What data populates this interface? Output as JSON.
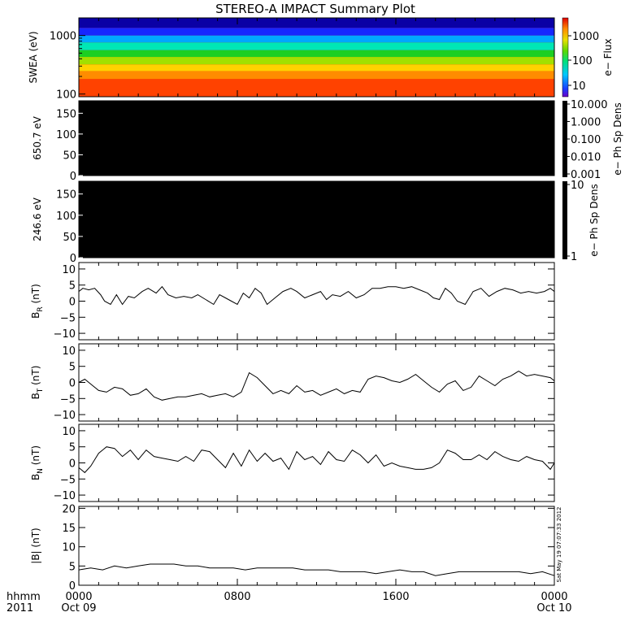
{
  "chart_data": {
    "title": "STEREO-A IMPACT Summary Plot",
    "time_axis": {
      "range_hours": [
        0,
        24
      ],
      "ticks": [
        {
          "at": 0,
          "top": "0000",
          "bottom": "Oct 09"
        },
        {
          "at": 8,
          "top": "0800",
          "bottom": ""
        },
        {
          "at": 16,
          "top": "1600",
          "bottom": ""
        },
        {
          "at": 24,
          "top": "0000",
          "bottom": "Oct 10"
        }
      ],
      "corner_top": "hhmm",
      "corner_bottom": "2011"
    },
    "timestamp": "Sat May 19 07:07:33 2012",
    "panels": [
      {
        "id": "swea",
        "type": "heatmap",
        "ylabel": "SWEA (eV)",
        "ylim": [
          90,
          2000
        ],
        "yscale": "log",
        "yticks": [
          "1000",
          "100"
        ],
        "bands": [
          {
            "energy_max": 1700,
            "color": "#0a00a5"
          },
          {
            "energy_max": 1350,
            "color": "#1626ff"
          },
          {
            "energy_max": 1000,
            "color": "#00a7ff"
          },
          {
            "energy_max": 760,
            "color": "#00e7b5"
          },
          {
            "energy_max": 560,
            "color": "#1ccf22"
          },
          {
            "energy_max": 430,
            "color": "#a2e000"
          },
          {
            "energy_max": 320,
            "color": "#ffd200"
          },
          {
            "energy_max": 245,
            "color": "#ff8c00"
          },
          {
            "energy_max": 180,
            "color": "#ff4200"
          },
          {
            "energy_max": 90,
            "color": "#e10a00"
          }
        ],
        "colorbar": {
          "label": "e− Flux",
          "ticks": [
            "1000",
            "100",
            "10"
          ]
        }
      },
      {
        "id": "pad650",
        "type": "heatmap",
        "ylabel": "650.7 eV",
        "ylim": [
          0,
          180
        ],
        "yticks": [
          "150",
          "100",
          "50",
          "0"
        ],
        "fill": "#000000",
        "colorbar": {
          "label": "e− Ph Sp Dens",
          "ticks": [
            "10.000",
            "1.000",
            "0.100",
            "0.010",
            "0.001"
          ]
        }
      },
      {
        "id": "pad246",
        "type": "heatmap",
        "ylabel": "246.6 eV",
        "ylim": [
          0,
          180
        ],
        "yticks": [
          "150",
          "100",
          "50",
          "0"
        ],
        "fill": "#000000",
        "colorbar": {
          "label": "e− Ph Sp Dens",
          "ticks": [
            "10",
            "1"
          ]
        }
      },
      {
        "id": "br",
        "type": "line",
        "ylabel": "BR (nT)",
        "ylabel_main": "B",
        "ylabel_sub": "R",
        "ylabel_unit": " (nT)",
        "ylim": [
          -12,
          12
        ],
        "yticks": [
          {
            "v": 10,
            "t": "10"
          },
          {
            "v": 5,
            "t": "5"
          },
          {
            "v": 0,
            "t": "0"
          },
          {
            "v": -5,
            "t": "−5"
          },
          {
            "v": -10,
            "t": "−10"
          }
        ],
        "x": [
          0,
          0.2,
          0.5,
          0.8,
          1.1,
          1.3,
          1.6,
          1.9,
          2.2,
          2.5,
          2.8,
          3.2,
          3.5,
          3.9,
          4.2,
          4.5,
          4.9,
          5.3,
          5.7,
          6.0,
          6.4,
          6.8,
          7.1,
          7.4,
          7.7,
          8.0,
          8.3,
          8.6,
          8.9,
          9.2,
          9.5,
          9.9,
          10.3,
          10.7,
          11.0,
          11.4,
          11.8,
          12.2,
          12.5,
          12.8,
          13.2,
          13.6,
          14.0,
          14.4,
          14.8,
          15.2,
          15.6,
          16.0,
          16.4,
          16.8,
          17.2,
          17.6,
          17.9,
          18.2,
          18.5,
          18.8,
          19.1,
          19.5,
          19.9,
          20.3,
          20.7,
          21.1,
          21.5,
          21.9,
          22.3,
          22.7,
          23.1,
          23.5,
          23.8,
          24.0
        ],
        "values": [
          3,
          4,
          3.5,
          4,
          2,
          0,
          -1,
          2,
          -1,
          1.5,
          1,
          3,
          4,
          2.5,
          4.5,
          2,
          1,
          1.5,
          1,
          2,
          0.5,
          -1,
          2,
          1,
          0,
          -1,
          2.5,
          1,
          4,
          2.5,
          -1,
          1,
          3,
          4,
          3,
          1,
          2,
          3,
          0.5,
          2,
          1.5,
          3,
          1,
          2,
          4,
          4,
          4.5,
          4.5,
          4,
          4.5,
          3.5,
          2.5,
          1,
          0.5,
          4,
          2.5,
          0,
          -1,
          3,
          4,
          1.5,
          3,
          4,
          3.5,
          2.5,
          3,
          2.5,
          3,
          4,
          3
        ]
      },
      {
        "id": "bt",
        "type": "line",
        "ylabel": "BT (nT)",
        "ylabel_main": "B",
        "ylabel_sub": "T",
        "ylabel_unit": " (nT)",
        "ylim": [
          -12,
          12
        ],
        "yticks": [
          {
            "v": 10,
            "t": "10"
          },
          {
            "v": 5,
            "t": "5"
          },
          {
            "v": 0,
            "t": "0"
          },
          {
            "v": -5,
            "t": "−5"
          },
          {
            "v": -10,
            "t": "−10"
          }
        ],
        "x": [
          0,
          0.3,
          0.7,
          1.0,
          1.4,
          1.8,
          2.2,
          2.6,
          3.0,
          3.4,
          3.8,
          4.2,
          4.6,
          5.0,
          5.4,
          5.8,
          6.2,
          6.6,
          7.0,
          7.4,
          7.8,
          8.2,
          8.6,
          9.0,
          9.4,
          9.8,
          10.2,
          10.6,
          11.0,
          11.4,
          11.8,
          12.2,
          12.6,
          13.0,
          13.4,
          13.8,
          14.2,
          14.6,
          15.0,
          15.4,
          15.8,
          16.2,
          16.6,
          17.0,
          17.4,
          17.8,
          18.2,
          18.6,
          19.0,
          19.4,
          19.8,
          20.2,
          20.6,
          21.0,
          21.4,
          21.8,
          22.2,
          22.6,
          23.0,
          23.4,
          23.8,
          24.0
        ],
        "values": [
          0,
          1,
          -1,
          -2.5,
          -3,
          -1.5,
          -2,
          -4,
          -3.5,
          -2,
          -4.5,
          -5.5,
          -5,
          -4.5,
          -4.5,
          -4,
          -3.5,
          -4.5,
          -4,
          -3.5,
          -4.5,
          -3,
          3,
          1.5,
          -1,
          -3.5,
          -2.5,
          -3.5,
          -1,
          -3,
          -2.5,
          -4,
          -3,
          -2,
          -3.5,
          -2.5,
          -3,
          1,
          2,
          1.5,
          0.5,
          0,
          1,
          2.5,
          0.5,
          -1.5,
          -3,
          -0.5,
          0.5,
          -2.5,
          -1.5,
          2,
          0.5,
          -1,
          1,
          2,
          3.5,
          2,
          2.5,
          2,
          1.5,
          0.5
        ]
      },
      {
        "id": "bn",
        "type": "line",
        "ylabel": "BN (nT)",
        "ylabel_main": "B",
        "ylabel_sub": "N",
        "ylabel_unit": " (nT)",
        "ylim": [
          -12,
          12
        ],
        "yticks": [
          {
            "v": 10,
            "t": "10"
          },
          {
            "v": 5,
            "t": "5"
          },
          {
            "v": 0,
            "t": "0"
          },
          {
            "v": -5,
            "t": "−5"
          },
          {
            "v": -10,
            "t": "−10"
          }
        ],
        "x": [
          0,
          0.3,
          0.6,
          1.0,
          1.4,
          1.8,
          2.2,
          2.6,
          3.0,
          3.4,
          3.8,
          4.2,
          4.6,
          5.0,
          5.4,
          5.8,
          6.2,
          6.6,
          7.0,
          7.4,
          7.8,
          8.2,
          8.6,
          9.0,
          9.4,
          9.8,
          10.2,
          10.6,
          11.0,
          11.4,
          11.8,
          12.2,
          12.6,
          13.0,
          13.4,
          13.8,
          14.2,
          14.6,
          15.0,
          15.4,
          15.8,
          16.2,
          16.6,
          17.0,
          17.4,
          17.8,
          18.2,
          18.6,
          19.0,
          19.4,
          19.8,
          20.2,
          20.6,
          21.0,
          21.4,
          21.8,
          22.2,
          22.6,
          23.0,
          23.4,
          23.8,
          24.0
        ],
        "values": [
          -1.5,
          -3,
          -1,
          3,
          5,
          4.5,
          2,
          4,
          1,
          4,
          2,
          1.5,
          1,
          0.5,
          2,
          0.5,
          4,
          3.5,
          1,
          -1.5,
          3,
          -1,
          4,
          0.5,
          3,
          0.5,
          1.5,
          -2,
          3.5,
          1,
          2,
          -0.5,
          3.5,
          1,
          0.5,
          4,
          2.5,
          0,
          2.5,
          -1,
          0,
          -1,
          -1.5,
          -2,
          -2,
          -1.5,
          0,
          4,
          3,
          1,
          1,
          2.5,
          1,
          3.5,
          2,
          1,
          0.5,
          2,
          1,
          0.5,
          -2,
          0
        ]
      },
      {
        "id": "bmag",
        "type": "line",
        "ylabel": "|B| (nT)",
        "ylabel_main": "|B|",
        "ylabel_sub": "",
        "ylabel_unit": " (nT)",
        "ylim": [
          0,
          20.5
        ],
        "yticks": [
          {
            "v": 20,
            "t": "20"
          },
          {
            "v": 15,
            "t": "15"
          },
          {
            "v": 10,
            "t": "10"
          },
          {
            "v": 5,
            "t": "5"
          },
          {
            "v": 0,
            "t": "0"
          }
        ],
        "x": [
          0,
          0.6,
          1.2,
          1.8,
          2.4,
          3.0,
          3.6,
          4.2,
          4.8,
          5.4,
          6.0,
          6.6,
          7.2,
          7.8,
          8.4,
          9.0,
          9.6,
          10.2,
          10.8,
          11.4,
          12.0,
          12.6,
          13.2,
          13.8,
          14.4,
          15.0,
          15.6,
          16.2,
          16.8,
          17.4,
          18.0,
          18.6,
          19.2,
          19.8,
          20.4,
          21.0,
          21.6,
          22.2,
          22.8,
          23.4,
          24.0
        ],
        "values": [
          4,
          4.5,
          4,
          5,
          4.5,
          5,
          5.5,
          5.5,
          5.5,
          5,
          5,
          4.5,
          4.5,
          4.5,
          4,
          4.5,
          4.5,
          4.5,
          4.5,
          4,
          4,
          4,
          3.5,
          3.5,
          3.5,
          3,
          3.5,
          4,
          3.5,
          3.5,
          2.5,
          3,
          3.5,
          3.5,
          3.5,
          3.5,
          3.5,
          3.5,
          3,
          3.5,
          2.5
        ]
      }
    ]
  }
}
